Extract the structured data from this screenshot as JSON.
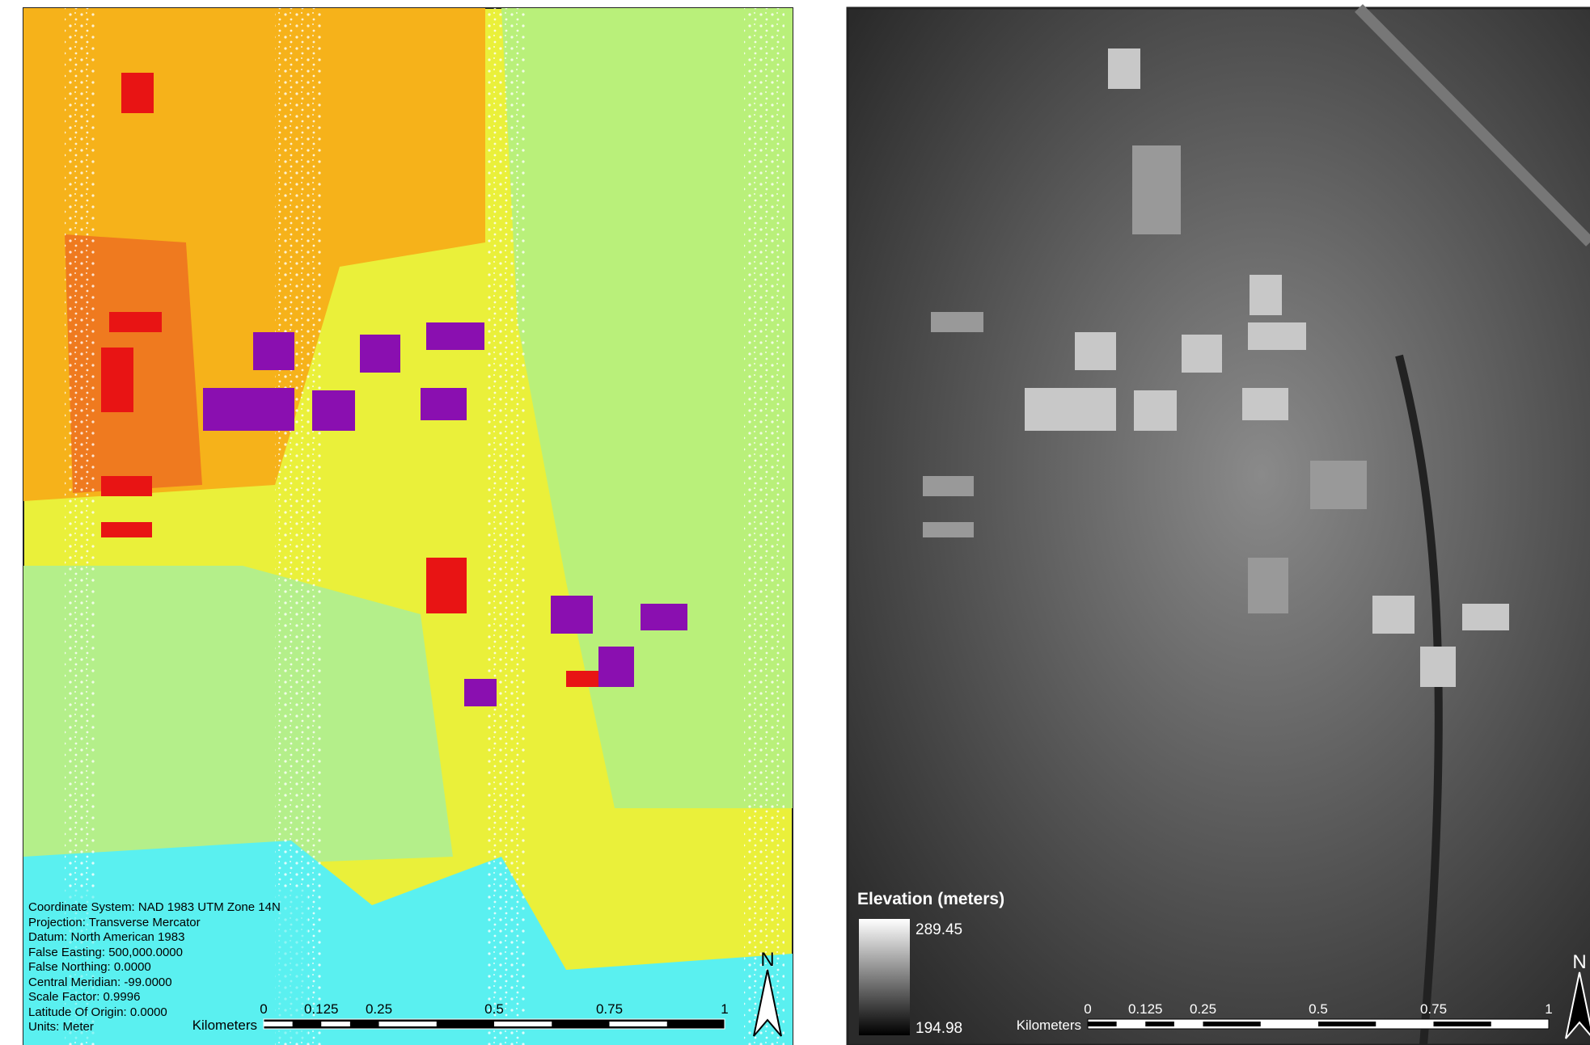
{
  "left_map": {
    "metadata": [
      "Coordinate System: NAD 1983 UTM Zone 14N",
      "Projection: Transverse Mercator",
      "Datum: North American 1983",
      "False Easting: 500,000.0000",
      "False Northing: 0.0000",
      "Central Meridian: -99.0000",
      "Scale Factor: 0.9996",
      "Latitude Of Origin: 0.0000",
      "Units: Meter"
    ],
    "scale_bar": {
      "unit": "Kilometers",
      "labels": [
        0,
        0.125,
        0.25,
        0.5,
        0.75,
        1
      ]
    },
    "north": "N"
  },
  "right_map": {
    "legend": {
      "title": "Elevation (meters)",
      "max": 289.45,
      "min": 194.98
    },
    "scale_bar": {
      "unit": "Kilometers",
      "labels": [
        0,
        0.125,
        0.25,
        0.5,
        0.75,
        1
      ]
    },
    "north": "N"
  }
}
